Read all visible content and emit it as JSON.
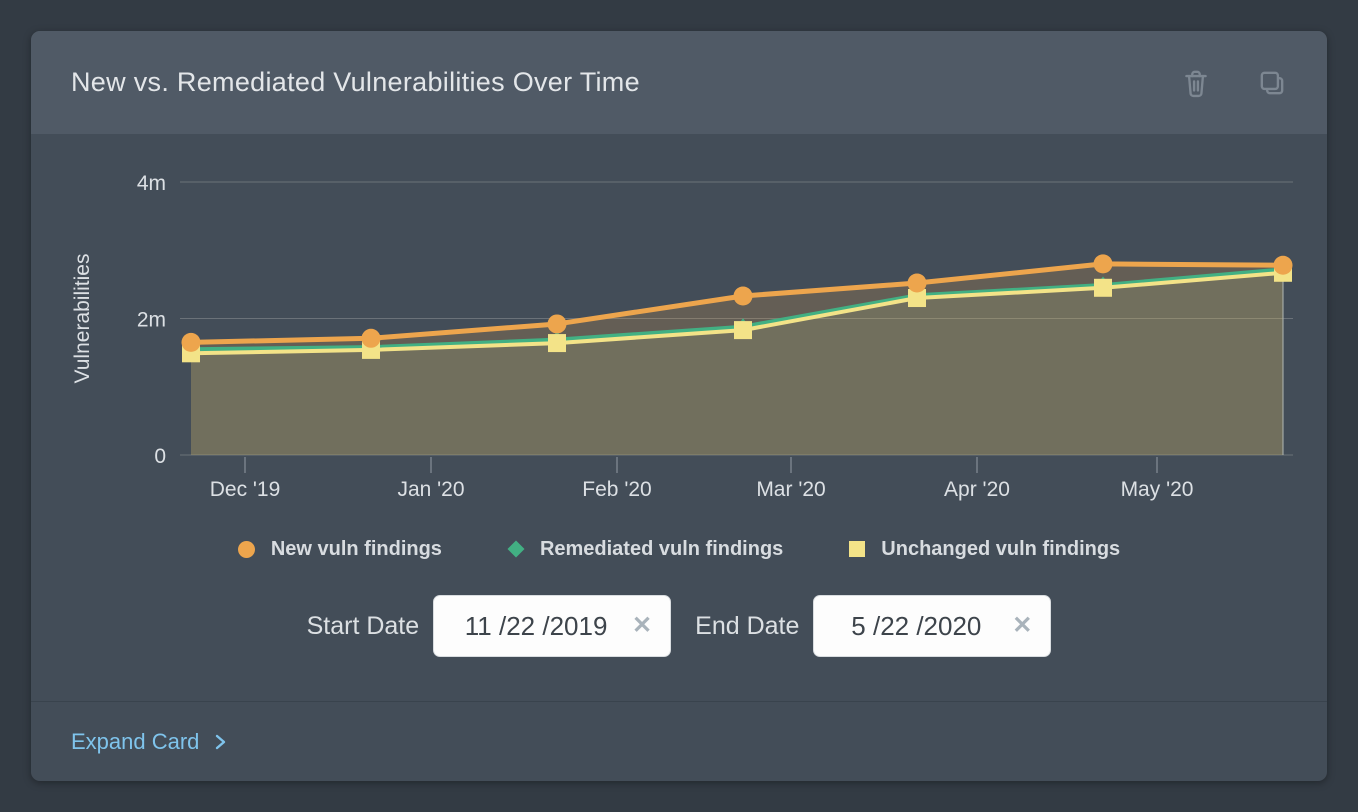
{
  "card": {
    "title": "New vs. Remediated Vulnerabilities Over Time",
    "footer": {
      "expand_label": "Expand Card"
    }
  },
  "chart_data": {
    "type": "line",
    "ylabel": "Vulnerabilities",
    "x_dates": [
      "2019-11-22",
      "2019-12-22",
      "2020-01-22",
      "2020-02-22",
      "2020-03-22",
      "2020-04-22",
      "2020-05-22"
    ],
    "x_tick_labels": [
      "Dec '19",
      "Jan '20",
      "Feb '20",
      "Mar '20",
      "Apr '20",
      "May '20"
    ],
    "y_ticks": [
      {
        "label": "0",
        "value": 0
      },
      {
        "label": "2m",
        "value": 2000000
      },
      {
        "label": "4m",
        "value": 4000000
      }
    ],
    "ylim": [
      0,
      4000000
    ],
    "grid": "horizontal",
    "area_fill": true,
    "legend_position": "bottom",
    "series": [
      {
        "name": "New vuln findings",
        "marker": "circle",
        "color": "#eda54d",
        "fill_opacity": 0.2,
        "values": [
          1650000,
          1710000,
          1920000,
          2330000,
          2520000,
          2800000,
          2780000
        ]
      },
      {
        "name": "Remediated vuln findings",
        "marker": "diamond",
        "color": "#42b083",
        "fill_opacity": 0.06,
        "values": [
          1550000,
          1580000,
          1690000,
          1880000,
          2340000,
          2490000,
          2720000
        ]
      },
      {
        "name": "Unchanged vuln findings",
        "marker": "square",
        "color": "#f3e388",
        "fill_opacity": 0.1,
        "values": [
          1490000,
          1540000,
          1640000,
          1830000,
          2300000,
          2450000,
          2670000
        ]
      }
    ]
  },
  "controls": {
    "start_date": {
      "label": "Start Date",
      "value": "11 /22 /2019",
      "clear_label": "✕"
    },
    "end_date": {
      "label": "End Date",
      "value": "5 /22 /2020",
      "clear_label": "✕"
    }
  }
}
